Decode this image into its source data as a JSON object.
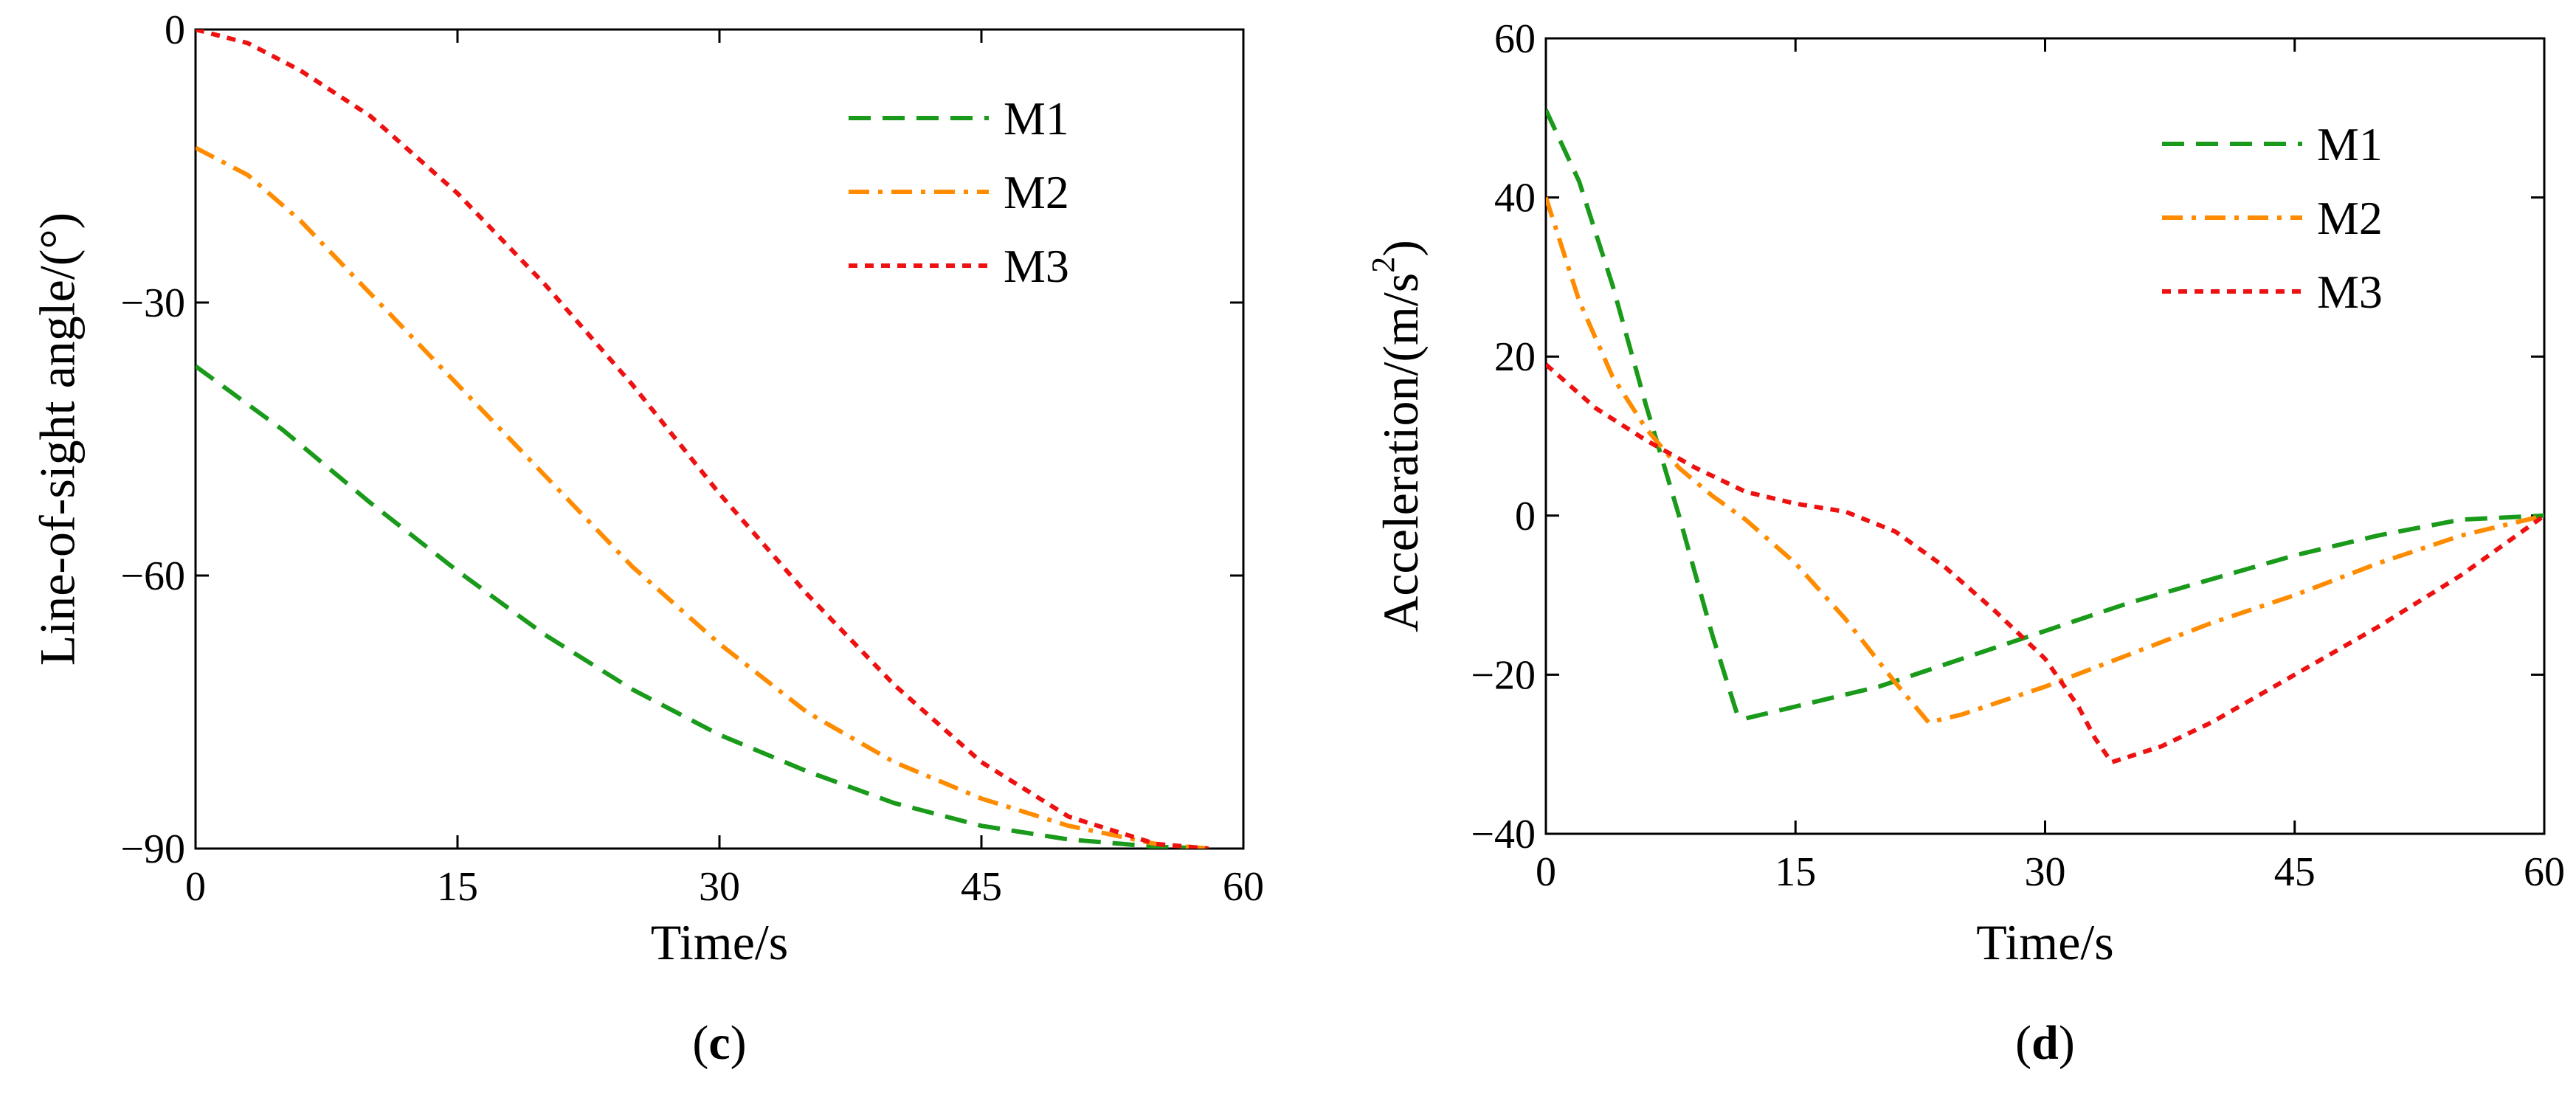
{
  "chart_data": [
    {
      "type": "line",
      "panel_label": {
        "open": "(",
        "letter": "c",
        "close": ")"
      },
      "xlabel": "Time/s",
      "ylabel": "Line-of-sight angle/(°)",
      "xlim": [
        0,
        60
      ],
      "ylim": [
        -90,
        0
      ],
      "xticks": [
        0,
        15,
        30,
        45,
        60
      ],
      "yticks": [
        0,
        -30,
        -60,
        -90
      ],
      "xtick_labels": [
        "0",
        "15",
        "30",
        "45",
        "60"
      ],
      "ytick_labels": [
        "0",
        "−30",
        "−60",
        "−90"
      ],
      "legend_position": "top-right",
      "series": [
        {
          "name": "M1",
          "color": "#1a9a1a",
          "dash": "dashed",
          "x": [
            0,
            5,
            10,
            15,
            20,
            25,
            30,
            35,
            40,
            45,
            50,
            55,
            58
          ],
          "y": [
            -37,
            -44,
            -52,
            -59.5,
            -66.5,
            -72.5,
            -77.5,
            -81.5,
            -85,
            -87.5,
            -89,
            -89.8,
            -90
          ]
        },
        {
          "name": "M2",
          "color": "#ff8c00",
          "dash": "dashdot",
          "x": [
            0,
            3,
            6,
            10,
            15,
            20,
            25,
            30,
            35,
            40,
            45,
            50,
            55,
            58
          ],
          "y": [
            -13,
            -16,
            -21,
            -29,
            -39,
            -49,
            -59,
            -67.5,
            -75,
            -80.5,
            -84.5,
            -87.5,
            -89.5,
            -90
          ]
        },
        {
          "name": "M3",
          "color": "#ee1111",
          "dash": "dotted",
          "x": [
            0,
            3,
            6,
            10,
            15,
            20,
            25,
            30,
            35,
            40,
            45,
            50,
            55,
            58
          ],
          "y": [
            0,
            -1.5,
            -4.5,
            -9.5,
            -18,
            -28,
            -39,
            -51,
            -62,
            -72,
            -80.5,
            -86.5,
            -89.5,
            -90
          ]
        }
      ]
    },
    {
      "type": "line",
      "panel_label": {
        "open": "(",
        "letter": "d",
        "close": ")"
      },
      "xlabel": "Time/s",
      "ylabel": "Acceleration/(m/s",
      "ylabel_superscript": "2",
      "ylabel_suffix": ")",
      "xlim": [
        0,
        60
      ],
      "ylim": [
        -40,
        60
      ],
      "xticks": [
        0,
        15,
        30,
        45,
        60
      ],
      "yticks": [
        60,
        40,
        20,
        0,
        -20,
        -40
      ],
      "xtick_labels": [
        "0",
        "15",
        "30",
        "45",
        "60"
      ],
      "ytick_labels": [
        "60",
        "40",
        "20",
        "0",
        "−20",
        "−40"
      ],
      "legend_position": "top-right",
      "series": [
        {
          "name": "M1",
          "color": "#1a9a1a",
          "dash": "dashed",
          "x": [
            0,
            2,
            4,
            6,
            8,
            10,
            11.5,
            12,
            15,
            20,
            25,
            30,
            35,
            40,
            45,
            50,
            55,
            60
          ],
          "y": [
            51,
            42,
            29,
            14,
            0,
            -15,
            -25,
            -25.5,
            -24,
            -21.5,
            -18,
            -14.5,
            -11,
            -8,
            -5,
            -2.5,
            -0.5,
            0
          ]
        },
        {
          "name": "M2",
          "color": "#ff8c00",
          "dash": "dashdot",
          "x": [
            0,
            2,
            4,
            6,
            8,
            10,
            12,
            15,
            18,
            21,
            23,
            25,
            30,
            35,
            40,
            45,
            50,
            55,
            60
          ],
          "y": [
            40,
            27,
            17.5,
            11,
            6,
            2.5,
            -0.5,
            -6,
            -13,
            -21,
            -26,
            -25,
            -21.5,
            -17.5,
            -13.5,
            -10,
            -6,
            -2.5,
            0
          ]
        },
        {
          "name": "M3",
          "color": "#ee1111",
          "dash": "dotted",
          "x": [
            0,
            3,
            6,
            9,
            12,
            15,
            18,
            21,
            24,
            27,
            30,
            32,
            33,
            34,
            37,
            40,
            45,
            50,
            55,
            60
          ],
          "y": [
            19,
            13.5,
            9.5,
            6,
            3,
            1.5,
            0.5,
            -2,
            -6.5,
            -12,
            -18,
            -24,
            -28,
            -31,
            -29,
            -26,
            -20,
            -14,
            -7.5,
            0
          ]
        }
      ]
    }
  ]
}
